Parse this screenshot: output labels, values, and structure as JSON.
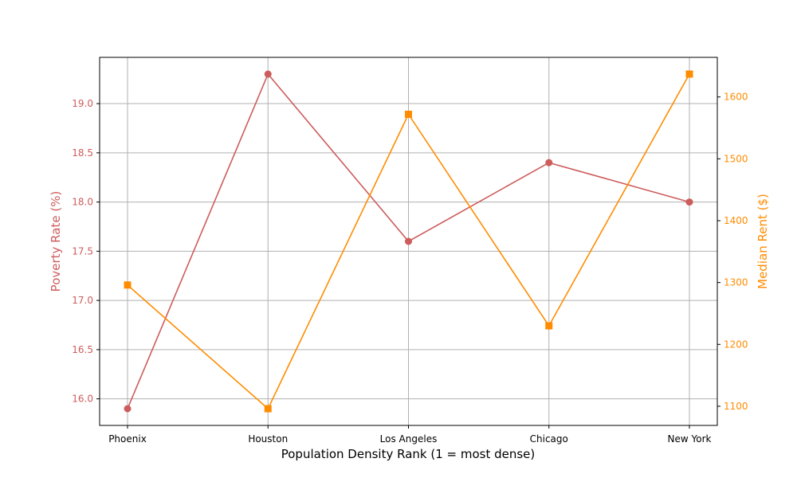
{
  "chart_data": {
    "type": "line",
    "categories": [
      "Phoenix",
      "Houston",
      "Los Angeles",
      "Chicago",
      "New York"
    ],
    "xlabel": "Population Density Rank (1 = most dense)",
    "grid": true,
    "series": [
      {
        "name": "Poverty Rate (%)",
        "axis": "left",
        "color": "#cd5c5c",
        "marker": "circle",
        "values": [
          15.9,
          19.3,
          17.6,
          18.4,
          18.0
        ]
      },
      {
        "name": "Median Rent ($)",
        "axis": "right",
        "color": "#ff8c00",
        "marker": "square",
        "values": [
          1296,
          1096,
          1572,
          1230,
          1637
        ]
      }
    ],
    "y_left": {
      "label": "Poverty Rate (%)",
      "color": "#cd5c5c",
      "ylim": [
        15.73,
        19.47
      ],
      "ticks": [
        16.0,
        16.5,
        17.0,
        17.5,
        18.0,
        18.5,
        19.0
      ],
      "tick_labels": [
        "16.0",
        "16.5",
        "17.0",
        "17.5",
        "18.0",
        "18.5",
        "19.0"
      ]
    },
    "y_right": {
      "label": "Median Rent ($)",
      "color": "#ff8c00",
      "ylim": [
        1069,
        1664
      ],
      "ticks": [
        1100,
        1200,
        1300,
        1400,
        1500,
        1600
      ],
      "tick_labels": [
        "1100",
        "1200",
        "1300",
        "1400",
        "1500",
        "1600"
      ]
    }
  }
}
